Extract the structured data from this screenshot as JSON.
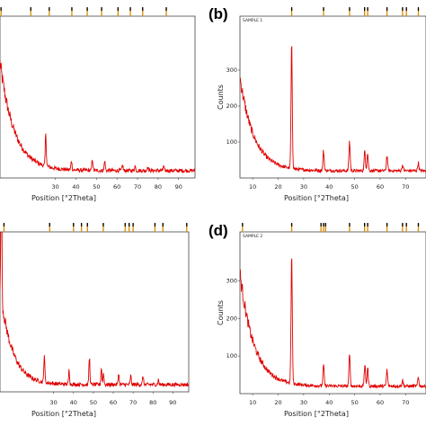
{
  "chart_data": [
    {
      "type": "line",
      "panel": "",
      "sample_label": "",
      "xlabel": "Position [°2Theta]",
      "ylabel": "",
      "xlim": [
        3,
        98
      ],
      "ylim": [
        0,
        330
      ],
      "x_ticks": [
        30,
        40,
        50,
        60,
        70,
        80,
        90
      ],
      "x_tick_labels": [
        "30",
        "40",
        "50",
        "60",
        "70",
        "80",
        "90"
      ],
      "y_ticks": [],
      "y_tick_labels": [],
      "line_color": "#e00000",
      "background": {
        "base": 15,
        "amp": 220,
        "decay": 7
      },
      "peaks": [
        {
          "x": 25.3,
          "height": 70
        },
        {
          "x": 37.8,
          "height": 20
        },
        {
          "x": 48.0,
          "height": 24
        },
        {
          "x": 54.0,
          "height": 20
        },
        {
          "x": 62.7,
          "height": 12
        },
        {
          "x": 68.8,
          "height": 10
        },
        {
          "x": 75.0,
          "height": 10
        },
        {
          "x": 82.7,
          "height": 8
        }
      ],
      "ref_markers": [
        3.5,
        18,
        27,
        38,
        45.5,
        52.5,
        60.5,
        66.5,
        72.5,
        84
      ]
    },
    {
      "type": "line",
      "panel": "(b)",
      "sample_label": "SAMPLE 1",
      "xlabel": "Position [°2Theta]",
      "ylabel": "Counts",
      "xlim": [
        5,
        78
      ],
      "ylim": [
        0,
        450
      ],
      "x_ticks": [
        10,
        20,
        30,
        40,
        50,
        60,
        70
      ],
      "x_tick_labels": [
        "10",
        "20",
        "30",
        "40",
        "50",
        "60",
        "70"
      ],
      "y_ticks": [
        100,
        200,
        300
      ],
      "y_tick_labels": [
        "100",
        "200",
        "300"
      ],
      "line_color": "#e00000",
      "background": {
        "base": 20,
        "amp": 260,
        "decay": 5.5
      },
      "peaks": [
        {
          "x": 25.3,
          "height": 330
        },
        {
          "x": 37.8,
          "height": 55
        },
        {
          "x": 48.0,
          "height": 80
        },
        {
          "x": 54.0,
          "height": 55
        },
        {
          "x": 55.1,
          "height": 48
        },
        {
          "x": 62.7,
          "height": 42
        },
        {
          "x": 68.8,
          "height": 16
        },
        {
          "x": 75.0,
          "height": 22
        }
      ],
      "ref_markers": [
        25.3,
        37.8,
        48.0,
        53.9,
        55.1,
        62.7,
        68.8,
        70.3,
        75.0
      ]
    },
    {
      "type": "line",
      "panel": "",
      "sample_label": "",
      "xlabel": "Position [°2Theta]",
      "ylabel": "",
      "xlim": [
        3,
        98
      ],
      "ylim": [
        0,
        330
      ],
      "x_ticks": [
        30,
        40,
        50,
        60,
        70,
        80,
        90
      ],
      "x_tick_labels": [
        "30",
        "40",
        "50",
        "60",
        "70",
        "80",
        "90"
      ],
      "y_ticks": [],
      "y_tick_labels": [],
      "line_color": "#e00000",
      "background": {
        "base": 15,
        "amp": 200,
        "decay": 6
      },
      "peaks": [
        {
          "x": 3.7,
          "height": 290
        },
        {
          "x": 25.3,
          "height": 60
        },
        {
          "x": 37.8,
          "height": 30
        },
        {
          "x": 48.0,
          "height": 55
        },
        {
          "x": 54.0,
          "height": 35
        },
        {
          "x": 55.1,
          "height": 25
        },
        {
          "x": 62.7,
          "height": 25
        },
        {
          "x": 68.8,
          "height": 18
        },
        {
          "x": 75.0,
          "height": 18
        },
        {
          "x": 82.7,
          "height": 10
        }
      ],
      "ref_markers": [
        5,
        28,
        40,
        44,
        47,
        55,
        66,
        68,
        70,
        81,
        85,
        97
      ]
    },
    {
      "type": "line",
      "panel": "(d)",
      "sample_label": "SAMPLE 2",
      "xlabel": "Position [°2Theta]",
      "ylabel": "Counts",
      "xlim": [
        5,
        78
      ],
      "ylim": [
        0,
        430
      ],
      "x_ticks": [
        10,
        20,
        30,
        40,
        50,
        60,
        70
      ],
      "x_tick_labels": [
        "10",
        "20",
        "30",
        "40",
        "50",
        "60",
        "70"
      ],
      "y_ticks": [
        100,
        200,
        300
      ],
      "y_tick_labels": [
        "100",
        "200",
        "300"
      ],
      "line_color": "#e00000",
      "background": {
        "base": 20,
        "amp": 300,
        "decay": 5.5
      },
      "peaks": [
        {
          "x": 25.3,
          "height": 330
        },
        {
          "x": 37.8,
          "height": 55
        },
        {
          "x": 48.0,
          "height": 80
        },
        {
          "x": 54.0,
          "height": 55
        },
        {
          "x": 55.1,
          "height": 48
        },
        {
          "x": 62.7,
          "height": 42
        },
        {
          "x": 68.8,
          "height": 16
        },
        {
          "x": 75.0,
          "height": 22
        }
      ],
      "ref_markers": [
        6,
        25.3,
        36.8,
        37.8,
        38.6,
        48.0,
        53.9,
        55.1,
        62.7,
        68.8,
        70.3,
        75.0
      ]
    }
  ]
}
